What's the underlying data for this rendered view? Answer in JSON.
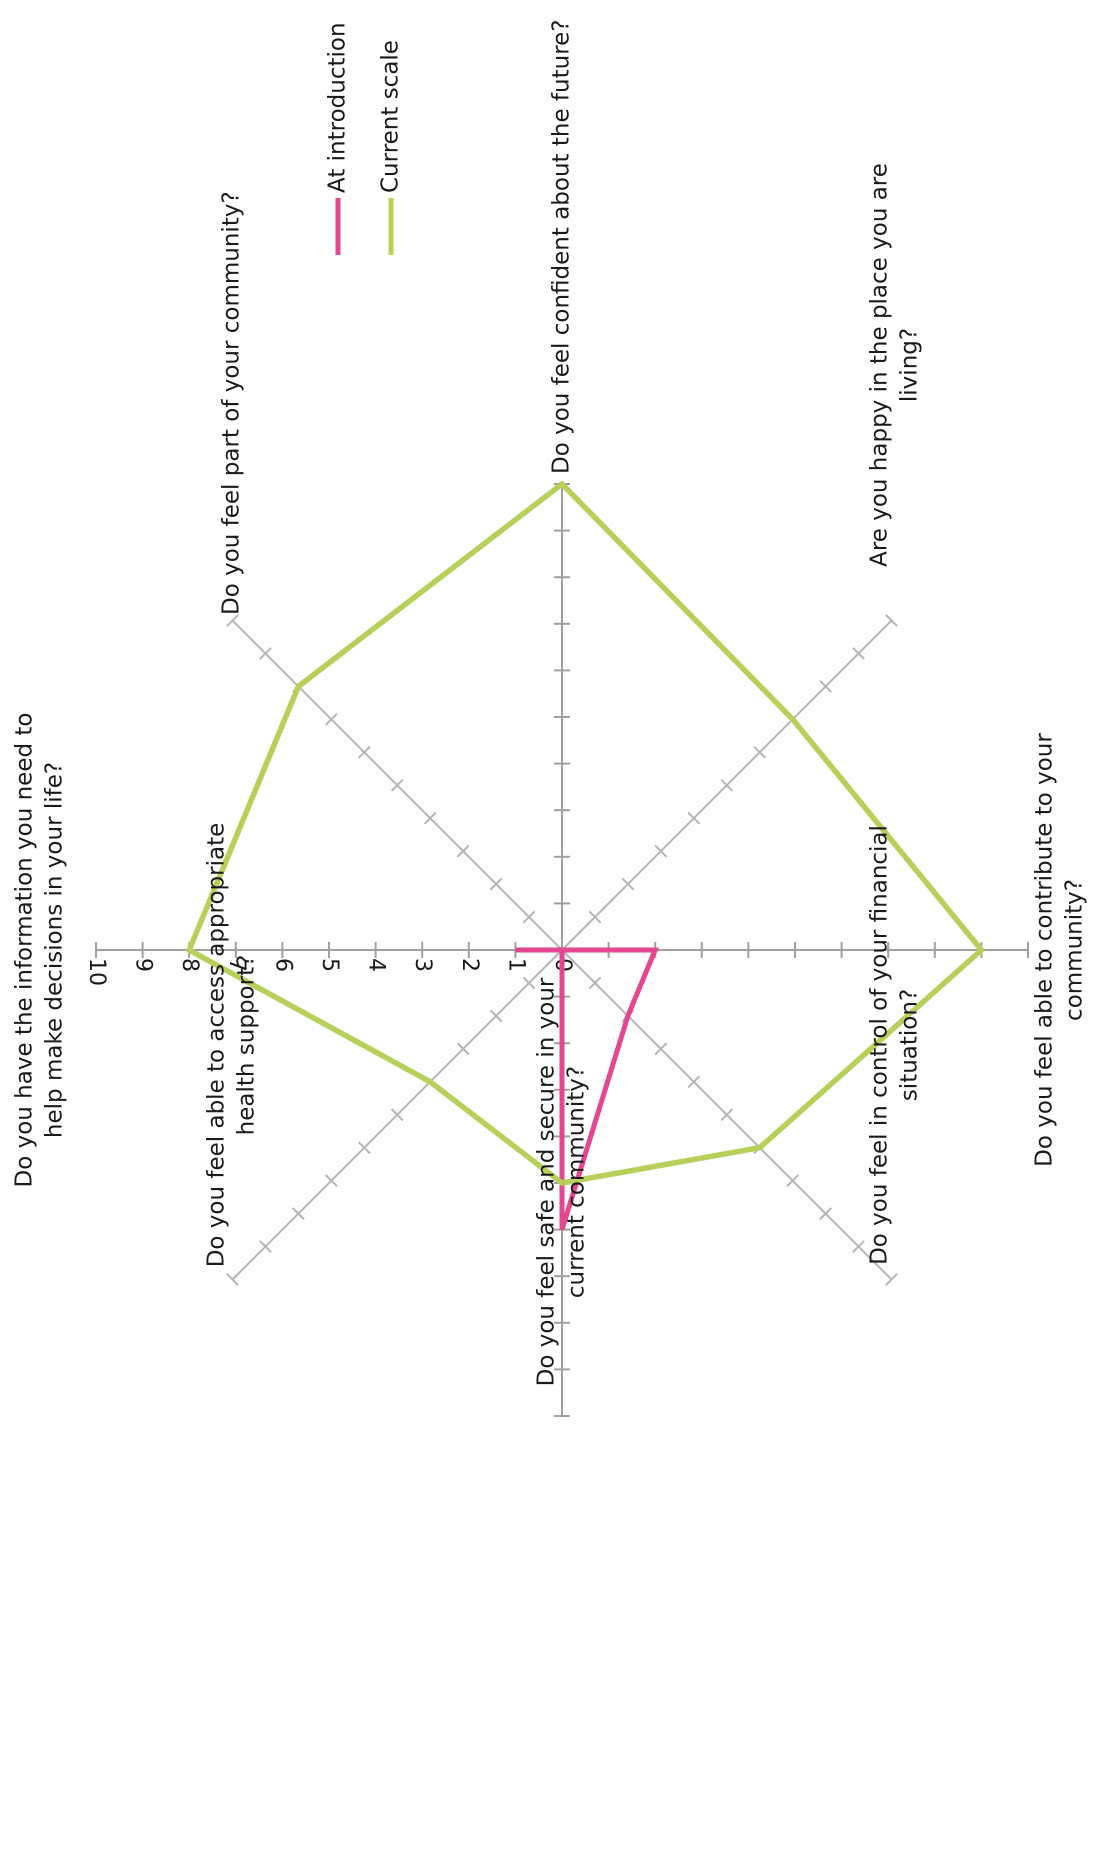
{
  "chart_data": {
    "type": "radar",
    "orientation": "rotated-90-clockwise",
    "r_range": [
      0,
      10
    ],
    "tick_values": [
      0,
      1,
      2,
      3,
      4,
      5,
      6,
      7,
      8,
      9,
      10
    ],
    "tick_labels": [
      "0",
      "1",
      "2",
      "3",
      "4",
      "5",
      "6",
      "7",
      "8",
      "9",
      "10"
    ],
    "grid": false,
    "legend_position": "top-right",
    "axes": [
      {
        "label_lines": [
          "Do you have the information you need to",
          "help make decisions in your life?"
        ]
      },
      {
        "label_lines": [
          "Do you feel part of your community?"
        ]
      },
      {
        "label_lines": [
          "Do you feel confident about the future?"
        ]
      },
      {
        "label_lines": [
          "Are you happy in the place you are",
          "living?"
        ]
      },
      {
        "label_lines": [
          "Do you feel able to contribute to your",
          "community?"
        ]
      },
      {
        "label_lines": [
          "Do you feel in control of your financial",
          "situation?"
        ]
      },
      {
        "label_lines": [
          "Do you feel safe and secure in your",
          "current community?"
        ]
      },
      {
        "label_lines": [
          "Do you feel able to access appropriate",
          "health support?"
        ]
      }
    ],
    "series": [
      {
        "name": "At introduction",
        "color": "#e5468f",
        "values": [
          1,
          0,
          0,
          0,
          2,
          2,
          6,
          0
        ]
      },
      {
        "name": "Current scale",
        "color": "#b8cf5a",
        "values": [
          8,
          8,
          10,
          7,
          9,
          6,
          5,
          4
        ]
      }
    ]
  },
  "colors": {
    "axis": "#a0a0a0",
    "text": "#1a1a1a"
  }
}
